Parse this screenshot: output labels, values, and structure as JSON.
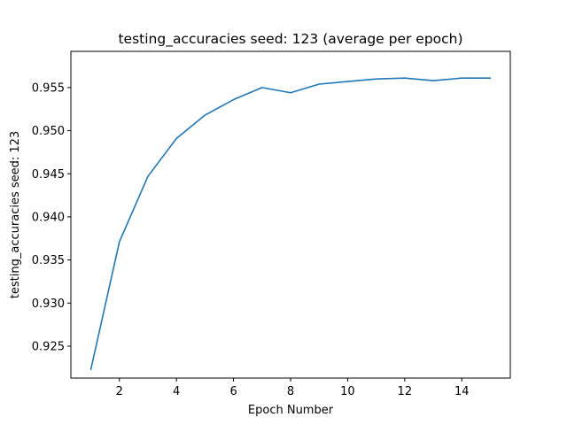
{
  "chart_data": {
    "type": "line",
    "title": "testing_accuracies seed: 123 (average per epoch)",
    "xlabel": "Epoch Number",
    "ylabel": "testing_accuracies seed: 123",
    "xlim": [
      0.3,
      15.7
    ],
    "ylim": [
      0.9213,
      0.9592
    ],
    "x_ticks": [
      2,
      4,
      6,
      8,
      10,
      12,
      14
    ],
    "y_ticks": [
      0.925,
      0.93,
      0.935,
      0.94,
      0.945,
      0.95,
      0.955
    ],
    "grid": false,
    "line_color": "#1f77b4",
    "series": [
      {
        "x": [
          1,
          2,
          3,
          4,
          5,
          6,
          7,
          8,
          9,
          10,
          11,
          12,
          13,
          14,
          15
        ],
        "values": [
          0.9223,
          0.9371,
          0.9447,
          0.9491,
          0.9518,
          0.9536,
          0.955,
          0.9544,
          0.9554,
          0.9557,
          0.956,
          0.9561,
          0.9558,
          0.9561,
          0.9561
        ]
      }
    ]
  }
}
